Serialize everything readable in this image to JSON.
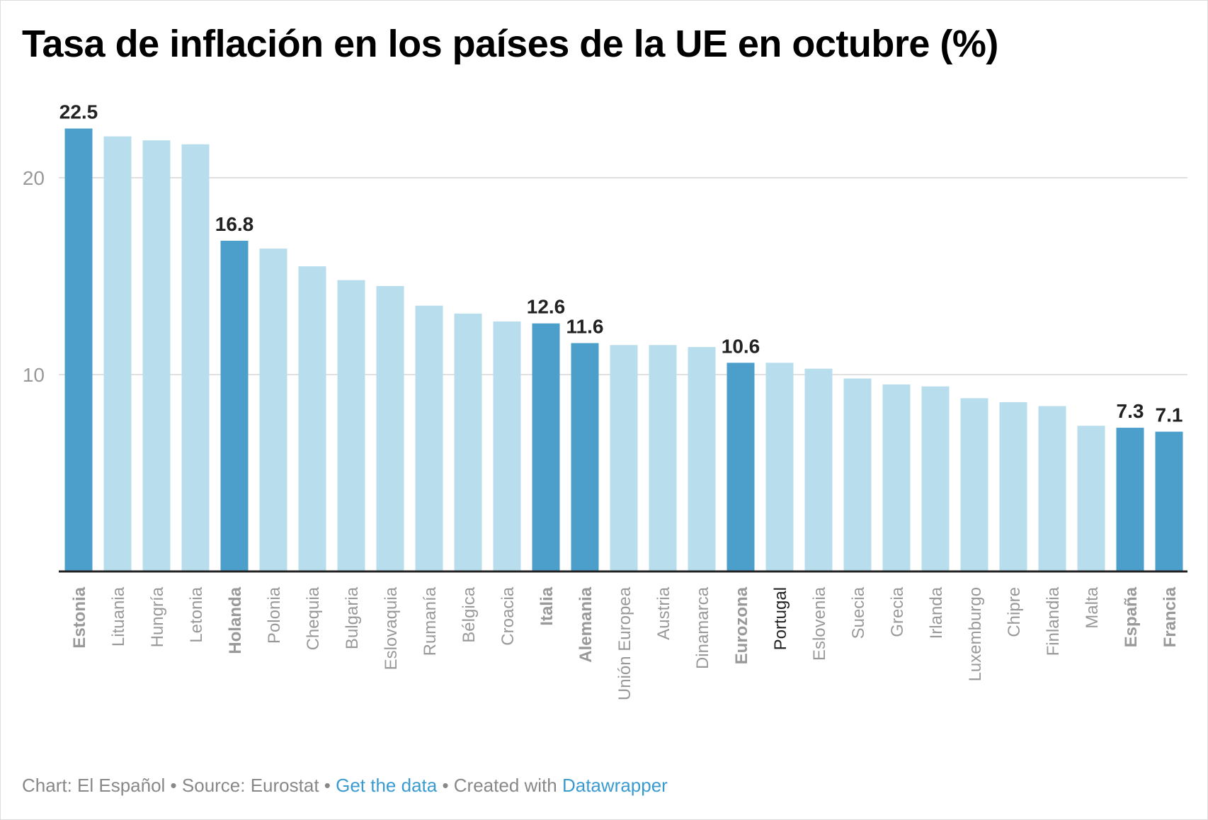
{
  "chart_data": {
    "type": "bar",
    "title": "Tasa de inflación en los países de la UE en octubre (%)",
    "categories": [
      "Estonia",
      "Lituania",
      "Hungría",
      "Letonia",
      "Holanda",
      "Polonia",
      "Chequia",
      "Bulgaria",
      "Eslovaquia",
      "Rumanía",
      "Bélgica",
      "Croacia",
      "Italia",
      "Alemania",
      "Unión Europea",
      "Austria",
      "Dinamarca",
      "Eurozona",
      "Portugal",
      "Eslovenia",
      "Suecia",
      "Grecia",
      "Irlanda",
      "Luxemburgo",
      "Chipre",
      "Finlandia",
      "Malta",
      "España",
      "Francia"
    ],
    "values": [
      22.5,
      22.1,
      21.9,
      21.7,
      16.8,
      16.4,
      15.5,
      14.8,
      14.5,
      13.5,
      13.1,
      12.7,
      12.6,
      11.6,
      11.5,
      11.5,
      11.4,
      10.6,
      10.6,
      10.3,
      9.8,
      9.5,
      9.4,
      8.8,
      8.6,
      8.4,
      7.4,
      7.3,
      7.1
    ],
    "highlighted": [
      "Estonia",
      "Holanda",
      "Italia",
      "Alemania",
      "Eurozona",
      "España",
      "Francia"
    ],
    "data_labels": {
      "Estonia": "22.5",
      "Holanda": "16.8",
      "Italia": "12.6",
      "Alemania": "11.6",
      "Eurozona": "10.6",
      "España": "7.3",
      "Francia": "7.1"
    },
    "dark_label": "Portugal",
    "ylim": [
      0,
      23
    ],
    "yticks": [
      10,
      20
    ],
    "xlabel": "",
    "ylabel": "",
    "grid": true,
    "colors": {
      "highlight": "#4c9fcb",
      "default": "#b8dded",
      "axis": "#222222",
      "grid": "#e0e0e0",
      "tick_label": "#999999"
    }
  },
  "footer": {
    "chart_by": "Chart: El Español",
    "sep1": " • ",
    "source": "Source: Eurostat",
    "sep2": " • ",
    "get_data": "Get the data",
    "sep3": " • ",
    "created": "Created with ",
    "datawrapper": "Datawrapper"
  }
}
